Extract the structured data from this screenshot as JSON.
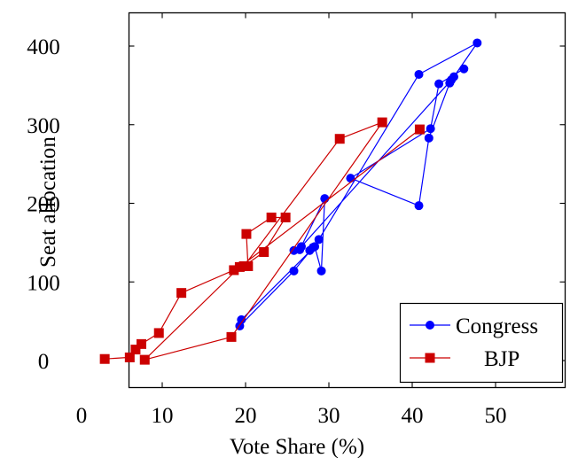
{
  "chart_data": {
    "type": "line",
    "xlabel": "Vote Share (%)",
    "ylabel": "Seat allocation",
    "xlim": [
      6,
      65
    ],
    "ylim": [
      -40,
      443
    ],
    "x_ticks": [
      {
        "value": 10,
        "label": "10"
      },
      {
        "value": 20,
        "label": "20"
      },
      {
        "value": 30,
        "label": "30"
      },
      {
        "value": 40,
        "label": "40"
      },
      {
        "value": 50,
        "label": "50"
      }
    ],
    "x_origin_label": "0",
    "y_ticks": [
      {
        "value": 0,
        "label": "0"
      },
      {
        "value": 100,
        "label": "100"
      },
      {
        "value": 200,
        "label": "200"
      },
      {
        "value": 300,
        "label": "300"
      },
      {
        "value": 400,
        "label": "400"
      }
    ],
    "legend_position": "bottom-right",
    "series": [
      {
        "name": "Congress",
        "color": "#0000ff",
        "marker": "circle",
        "points": [
          {
            "x": 45.0,
            "y": 361
          },
          {
            "x": 47.8,
            "y": 404
          },
          {
            "x": 40.8,
            "y": 364
          },
          {
            "x": 28.8,
            "y": 154
          },
          {
            "x": 27.7,
            "y": 140
          },
          {
            "x": 28.1,
            "y": 144
          },
          {
            "x": 25.8,
            "y": 114
          },
          {
            "x": 19.3,
            "y": 44
          },
          {
            "x": 19.5,
            "y": 52
          },
          {
            "x": 28.3,
            "y": 145
          },
          {
            "x": 29.1,
            "y": 114
          },
          {
            "x": 29.5,
            "y": 206
          },
          {
            "x": 26.5,
            "y": 141
          },
          {
            "x": 25.8,
            "y": 140
          },
          {
            "x": 26.7,
            "y": 145
          },
          {
            "x": 44.7,
            "y": 357
          },
          {
            "x": 44.5,
            "y": 353
          },
          {
            "x": 42.0,
            "y": 283
          },
          {
            "x": 40.8,
            "y": 197
          },
          {
            "x": 32.6,
            "y": 232
          },
          {
            "x": 42.2,
            "y": 295
          },
          {
            "x": 43.2,
            "y": 352
          },
          {
            "x": 46.2,
            "y": 371
          }
        ]
      },
      {
        "name": "BJP",
        "color": "#cc0000",
        "marker": "square",
        "points": [
          {
            "x": 3.1,
            "y": 2
          },
          {
            "x": 6.1,
            "y": 4
          },
          {
            "x": 6.8,
            "y": 14
          },
          {
            "x": 7.5,
            "y": 21
          },
          {
            "x": 9.6,
            "y": 35
          },
          {
            "x": 12.3,
            "y": 86
          },
          {
            "x": 18.6,
            "y": 115
          },
          {
            "x": 20.3,
            "y": 120
          },
          {
            "x": 20.1,
            "y": 161
          },
          {
            "x": 23.1,
            "y": 182
          },
          {
            "x": 24.8,
            "y": 182
          },
          {
            "x": 22.2,
            "y": 138
          },
          {
            "x": 19.8,
            "y": 120
          },
          {
            "x": 31.3,
            "y": 282
          },
          {
            "x": 36.4,
            "y": 303
          },
          {
            "x": 18.3,
            "y": 30
          },
          {
            "x": 7.9,
            "y": 1
          },
          {
            "x": 19.3,
            "y": 119
          },
          {
            "x": 40.9,
            "y": 294
          }
        ]
      }
    ]
  }
}
